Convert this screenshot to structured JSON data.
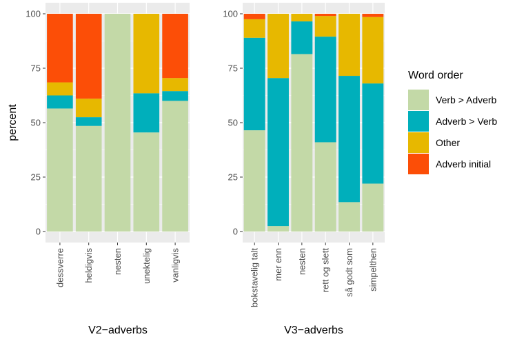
{
  "chart_data": {
    "type": "bar",
    "stacked": true,
    "ylabel": "percent",
    "ylim": [
      0,
      100
    ],
    "yticks": [
      0,
      25,
      50,
      75,
      100
    ],
    "grid": true,
    "legend": {
      "title": "Word order",
      "placement": "right",
      "entries": [
        "Verb > Adverb",
        "Adverb > Verb",
        "Other",
        "Adverb initial"
      ]
    },
    "colors": {
      "Verb > Adverb": "#c3d9a7",
      "Adverb > Verb": "#00afbb",
      "Other": "#e7b800",
      "Adverb initial": "#fc4e07"
    },
    "panels": [
      {
        "xlabel": "V2−adverbs",
        "categories": [
          "dessverre",
          "heldigvis",
          "nesten",
          "unektelig",
          "vanligvis"
        ],
        "series": [
          {
            "name": "Verb > Adverb",
            "values": [
              56.5,
              48.5,
              100,
              45.5,
              60.0
            ]
          },
          {
            "name": "Adverb > Verb",
            "values": [
              6.0,
              4.0,
              0,
              18.0,
              4.5
            ]
          },
          {
            "name": "Other",
            "values": [
              6.0,
              8.5,
              0,
              36.5,
              6.0
            ]
          },
          {
            "name": "Adverb initial",
            "values": [
              31.5,
              39.0,
              0,
              0,
              29.5
            ]
          }
        ]
      },
      {
        "xlabel": "V3−adverbs",
        "categories": [
          "bokstavelig talt",
          "mer enn",
          "nesten",
          "rett og slett",
          "så godt som",
          "simpelthen"
        ],
        "series": [
          {
            "name": "Verb > Adverb",
            "values": [
              46.5,
              2.5,
              81.5,
              41.0,
              13.5,
              22.0
            ]
          },
          {
            "name": "Adverb > Verb",
            "values": [
              42.5,
              68.0,
              15.0,
              48.5,
              58.0,
              46.0
            ]
          },
          {
            "name": "Other",
            "values": [
              8.5,
              29.5,
              3.5,
              9.5,
              28.5,
              30.5
            ]
          },
          {
            "name": "Adverb initial",
            "values": [
              2.5,
              0,
              0,
              1.0,
              0,
              1.5
            ]
          }
        ]
      }
    ]
  }
}
